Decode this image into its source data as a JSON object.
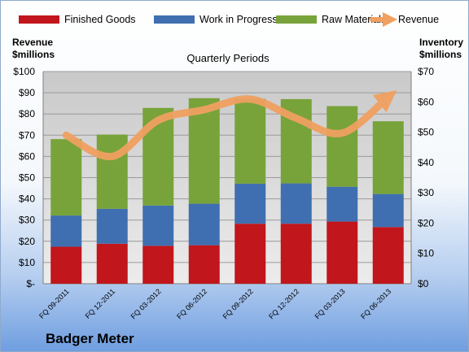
{
  "chart_data": {
    "type": "bar",
    "stacked": true,
    "title": "Quarterly Periods",
    "company": "Badger Meter",
    "left_axis_label": [
      "Revenue",
      "$millions"
    ],
    "right_axis_label": [
      "Inventory",
      "$millions"
    ],
    "categories": [
      "FQ 09-2011",
      "FQ 12-2011",
      "FQ 03-2012",
      "FQ 06-2012",
      "FQ 09-2012",
      "FQ 12-2012",
      "FQ 03-2013",
      "FQ 06-2013"
    ],
    "left_ticks": [
      "$-",
      "$10",
      "$20",
      "$30",
      "$40",
      "$50",
      "$60",
      "$70",
      "$80",
      "$90",
      "$100"
    ],
    "right_ticks": [
      "$0",
      "$10",
      "$20",
      "$30",
      "$40",
      "$50",
      "$60",
      "$70"
    ],
    "left_ylim": [
      0,
      100
    ],
    "right_ylim": [
      0,
      70
    ],
    "grid": true,
    "legend_position": "top",
    "series": [
      {
        "name": "Finished Goods",
        "axis": "right",
        "color": "#c0161c",
        "values": [
          12.2,
          13.2,
          12.5,
          12.7,
          19.8,
          19.8,
          20.5,
          18.7
        ]
      },
      {
        "name": "Work in Progress",
        "axis": "right",
        "color": "#3f6fb0",
        "values": [
          10.3,
          11.5,
          13.3,
          13.7,
          13.2,
          13.3,
          11.5,
          10.9
        ]
      },
      {
        "name": "Raw Materials",
        "axis": "right",
        "color": "#78a33a",
        "values": [
          25.2,
          24.5,
          32.2,
          34.8,
          28.0,
          27.8,
          26.6,
          24.0
        ]
      },
      {
        "name": "Revenue",
        "axis": "left",
        "color": "#f0a060",
        "type": "line",
        "values": [
          70,
          60,
          77,
          82,
          87,
          78,
          71,
          88
        ]
      }
    ]
  }
}
